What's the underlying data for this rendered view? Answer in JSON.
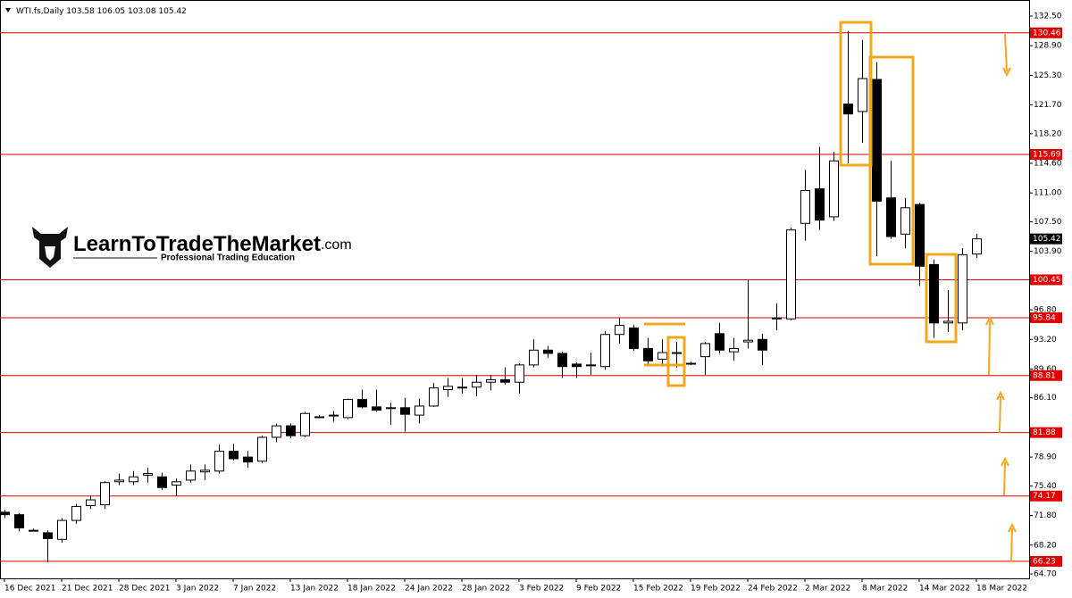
{
  "chart_data": {
    "type": "candlestick",
    "title": "WTI.fs,Daily",
    "categories": [
      "16 Dec 2021",
      null,
      null,
      null,
      "21 Dec 2021",
      null,
      null,
      null,
      "28 Dec 2021",
      null,
      null,
      null,
      "3 Jan 2022",
      null,
      null,
      null,
      "7 Jan 2022",
      null,
      null,
      null,
      "13 Jan 2022",
      null,
      null,
      null,
      "18 Jan 2022",
      null,
      null,
      null,
      "24 Jan 2022",
      null,
      null,
      null,
      "28 Jan 2022",
      null,
      null,
      null,
      "3 Feb 2022",
      null,
      null,
      null,
      "9 Feb 2022",
      null,
      null,
      null,
      "15 Feb 2022",
      null,
      null,
      null,
      "19 Feb 2022",
      null,
      null,
      null,
      "24 Feb 2022",
      null,
      null,
      null,
      "2 Mar 2022",
      null,
      null,
      null,
      "8 Mar 2022",
      null,
      null,
      null,
      "14 Mar 2022",
      null,
      null,
      null,
      "18 Mar 2022"
    ],
    "open": [
      72.2,
      71.9,
      70.0,
      69.7,
      68.9,
      71.2,
      73.0,
      73.1,
      75.9,
      75.9,
      76.7,
      76.5,
      75.5,
      76.1,
      77.1,
      77.2,
      79.6,
      78.9,
      78.4,
      81.3,
      82.7,
      81.5,
      83.8,
      83.9,
      83.7,
      85.9,
      85.0,
      84.9,
      84.9,
      84.0,
      85.1,
      87.1,
      87.3,
      87.4,
      88.0,
      88.3,
      88.0,
      90.1,
      91.9,
      91.5,
      90.2,
      90.0,
      89.9,
      93.8,
      94.6,
      92.1,
      90.8,
      91.6,
      90.3,
      91.1,
      93.9,
      91.7,
      92.9,
      93.2,
      95.7,
      95.7,
      107.3,
      111.5,
      108.1,
      121.8,
      120.9,
      124.8,
      110.4,
      106.0,
      109.6,
      102.3,
      95.2,
      95.2,
      103.58
    ],
    "high": [
      72.5,
      72.1,
      70.2,
      70.0,
      71.5,
      73.2,
      74.2,
      76.0,
      76.9,
      77.2,
      77.6,
      77.0,
      76.3,
      78.0,
      78.0,
      80.4,
      80.5,
      79.6,
      81.5,
      83.0,
      83.0,
      84.4,
      84.0,
      84.5,
      86.0,
      87.1,
      87.1,
      85.5,
      86.1,
      86.0,
      87.9,
      88.5,
      88.5,
      88.9,
      88.9,
      89.8,
      90.3,
      93.2,
      92.4,
      91.7,
      90.4,
      91.6,
      94.2,
      95.8,
      95.0,
      93.4,
      93.2,
      92.9,
      90.5,
      92.9,
      95.2,
      93.4,
      100.4,
      93.9,
      97.6,
      106.8,
      113.8,
      116.6,
      116.0,
      130.7,
      129.6,
      126.9,
      114.9,
      110.4,
      109.8,
      102.9,
      99.2,
      104.3,
      106.05
    ],
    "low": [
      71.5,
      69.9,
      69.9,
      66.1,
      68.5,
      70.8,
      72.6,
      72.6,
      75.5,
      75.5,
      75.8,
      74.9,
      74.2,
      75.8,
      76.1,
      76.9,
      78.5,
      77.6,
      78.2,
      80.7,
      81.2,
      81.3,
      83.6,
      83.2,
      83.5,
      84.8,
      84.4,
      82.8,
      82.0,
      83.0,
      85.0,
      86.2,
      86.6,
      86.3,
      87.0,
      87.7,
      86.6,
      89.8,
      91.0,
      88.5,
      88.5,
      88.9,
      89.5,
      92.7,
      91.8,
      90.2,
      89.9,
      89.8,
      90.1,
      88.9,
      91.5,
      90.6,
      92.1,
      90.1,
      94.3,
      95.5,
      105.2,
      106.5,
      107.6,
      114.6,
      117.1,
      103.3,
      105.4,
      104.3,
      99.7,
      93.4,
      94.1,
      94.3,
      103.08
    ],
    "close": [
      71.9,
      70.3,
      70.0,
      69.0,
      71.2,
      72.9,
      73.7,
      75.8,
      76.1,
      76.5,
      76.9,
      75.2,
      75.9,
      77.2,
      77.3,
      79.6,
      78.7,
      78.3,
      81.3,
      82.7,
      81.5,
      84.2,
      83.8,
      84.0,
      85.9,
      85.0,
      84.6,
      84.9,
      84.1,
      85.1,
      87.3,
      87.5,
      87.4,
      88.0,
      88.3,
      88.0,
      90.1,
      91.9,
      91.5,
      89.9,
      89.9,
      90.1,
      93.8,
      94.9,
      92.1,
      90.6,
      91.6,
      91.6,
      90.3,
      92.7,
      91.9,
      92.1,
      93.1,
      91.9,
      95.8,
      106.5,
      111.3,
      107.7,
      114.9,
      120.6,
      124.9,
      110.0,
      105.7,
      109.2,
      102.1,
      95.2,
      95.4,
      103.5,
      105.42
    ],
    "ylim": [
      64.16,
      134.45
    ],
    "yticks": [
      {
        "value": 132.5,
        "label": "132.50"
      },
      {
        "value": 128.9,
        "label": "128.90"
      },
      {
        "value": 125.3,
        "label": "125.30"
      },
      {
        "value": 121.7,
        "label": "121.70"
      },
      {
        "value": 118.2,
        "label": "118.20"
      },
      {
        "value": 114.6,
        "label": "114.60"
      },
      {
        "value": 111.0,
        "label": "111.00"
      },
      {
        "value": 107.5,
        "label": "107.50"
      },
      {
        "value": 103.9,
        "label": "103.90"
      },
      {
        "value": 96.8,
        "label": "96.80"
      },
      {
        "value": 93.2,
        "label": "93.20"
      },
      {
        "value": 89.6,
        "label": "89.60"
      },
      {
        "value": 86.1,
        "label": "86.10"
      },
      {
        "value": 78.9,
        "label": "78.90"
      },
      {
        "value": 75.4,
        "label": "75.40"
      },
      {
        "value": 71.8,
        "label": "71.80"
      },
      {
        "value": 68.2,
        "label": "68.20"
      },
      {
        "value": 64.7,
        "label": "64.70"
      }
    ],
    "levels": [
      130.46,
      115.69,
      100.45,
      95.84,
      88.81,
      81.88,
      74.17,
      66.23
    ],
    "level_color": "#e00000",
    "up_color": "#ffffff",
    "down_color": "#000000",
    "logo_name": "LearnToTradeTheMarket",
    "logo_domain": ".com",
    "logo_tagline": "Professional Trading Education"
  }
}
